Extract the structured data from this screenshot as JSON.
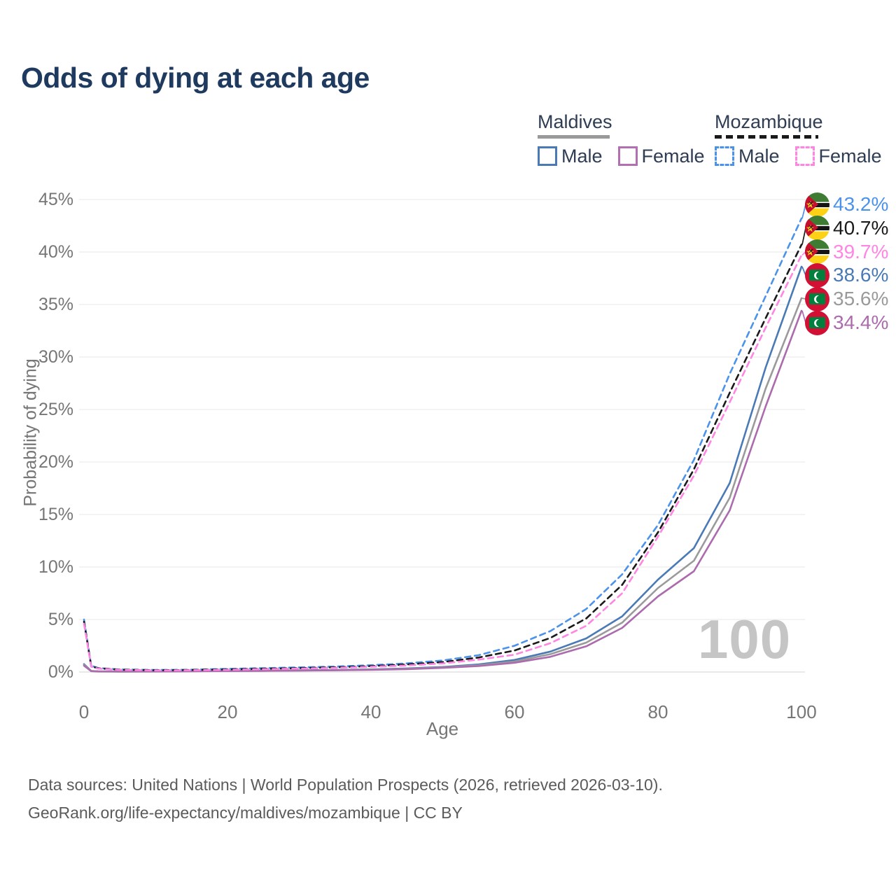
{
  "title": "Odds of dying at each age",
  "legend": {
    "groups": [
      {
        "country": "Maldives",
        "line_style": "solid",
        "underline_color": "#999999",
        "items": [
          {
            "label": "Male",
            "color": "#4a7ab5"
          },
          {
            "label": "Female",
            "color": "#b26fb2"
          }
        ]
      },
      {
        "country": "Mozambique",
        "line_style": "dashed",
        "underline_color": "#1a1a1a",
        "items": [
          {
            "label": "Male",
            "color": "#4b93ea"
          },
          {
            "label": "Female",
            "color": "#ff85e3"
          }
        ]
      }
    ]
  },
  "chart_data": {
    "type": "line",
    "title": "Odds of dying at each age",
    "xlabel": "Age",
    "ylabel": "Probability of dying",
    "xlim": [
      0,
      100
    ],
    "ylim": [
      0,
      45
    ],
    "grid": "horizontal-only",
    "hover_age_label": "100",
    "xticks": [
      {
        "v": 0,
        "label": "0"
      },
      {
        "v": 20,
        "label": "20"
      },
      {
        "v": 40,
        "label": "40"
      },
      {
        "v": 60,
        "label": "60"
      },
      {
        "v": 80,
        "label": "80"
      },
      {
        "v": 100,
        "label": "100"
      }
    ],
    "yticks": [
      {
        "v": 0,
        "label": "0%"
      },
      {
        "v": 5,
        "label": "5%"
      },
      {
        "v": 10,
        "label": "10%"
      },
      {
        "v": 15,
        "label": "15%"
      },
      {
        "v": 20,
        "label": "20%"
      },
      {
        "v": 25,
        "label": "25%"
      },
      {
        "v": 30,
        "label": "30%"
      },
      {
        "v": 35,
        "label": "35%"
      },
      {
        "v": 40,
        "label": "40%"
      },
      {
        "v": 45,
        "label": "45%"
      }
    ],
    "ages": [
      0,
      1,
      2,
      5,
      10,
      15,
      20,
      25,
      30,
      35,
      40,
      45,
      50,
      55,
      60,
      65,
      70,
      75,
      80,
      85,
      90,
      95,
      100
    ],
    "series": [
      {
        "name": "Mozambique Male",
        "color": "#4b93ea",
        "dashed": true,
        "end_label": "43.2%",
        "flag": "mozambique",
        "values": [
          5.0,
          0.6,
          0.38,
          0.24,
          0.2,
          0.22,
          0.3,
          0.37,
          0.44,
          0.52,
          0.65,
          0.82,
          1.1,
          1.6,
          2.5,
          3.9,
          6.0,
          9.3,
          14.0,
          20.2,
          28.4,
          35.8,
          43.2
        ]
      },
      {
        "name": "Mozambique Both sexes",
        "color": "#1a1a1a",
        "dashed": true,
        "end_label": "40.7%",
        "flag": "mozambique",
        "values": [
          4.8,
          0.55,
          0.35,
          0.22,
          0.17,
          0.19,
          0.25,
          0.31,
          0.37,
          0.45,
          0.56,
          0.72,
          0.95,
          1.38,
          2.05,
          3.25,
          5.1,
          8.3,
          13.3,
          19.3,
          26.6,
          33.7,
          40.7
        ]
      },
      {
        "name": "Mozambique Female",
        "color": "#ff85e3",
        "dashed": true,
        "end_label": "39.7%",
        "flag": "mozambique",
        "values": [
          4.6,
          0.5,
          0.32,
          0.2,
          0.15,
          0.17,
          0.21,
          0.27,
          0.32,
          0.39,
          0.49,
          0.62,
          0.82,
          1.18,
          1.65,
          2.75,
          4.4,
          7.5,
          12.9,
          18.7,
          25.7,
          32.8,
          39.7
        ]
      },
      {
        "name": "Maldives Male",
        "color": "#4a7ab5",
        "dashed": false,
        "end_label": "38.6%",
        "flag": "maldives",
        "values": [
          0.75,
          0.1,
          0.07,
          0.05,
          0.06,
          0.09,
          0.12,
          0.14,
          0.16,
          0.2,
          0.25,
          0.34,
          0.48,
          0.72,
          1.15,
          1.95,
          3.2,
          5.3,
          8.8,
          11.8,
          18.0,
          29.0,
          38.6
        ]
      },
      {
        "name": "Maldives Both sexes",
        "color": "#9a9a9a",
        "dashed": false,
        "end_label": "35.6%",
        "flag": "maldives",
        "values": [
          0.68,
          0.09,
          0.06,
          0.045,
          0.055,
          0.08,
          0.1,
          0.12,
          0.14,
          0.18,
          0.22,
          0.3,
          0.43,
          0.64,
          1.0,
          1.7,
          2.8,
          4.7,
          8.0,
          10.6,
          16.6,
          27.0,
          35.6
        ]
      },
      {
        "name": "Maldives Female",
        "color": "#ab6bad",
        "dashed": false,
        "end_label": "34.4%",
        "flag": "maldives",
        "values": [
          0.6,
          0.08,
          0.05,
          0.04,
          0.05,
          0.07,
          0.09,
          0.11,
          0.13,
          0.16,
          0.2,
          0.27,
          0.39,
          0.57,
          0.88,
          1.45,
          2.45,
          4.2,
          7.2,
          9.6,
          15.4,
          25.3,
          34.4
        ]
      }
    ]
  },
  "footer": {
    "line1": "Data sources: United Nations | World Population Prospects (2026, retrieved 2026-03-10).",
    "line2": "GeoRank.org/life-expectancy/maldives/mozambique | CC BY"
  }
}
